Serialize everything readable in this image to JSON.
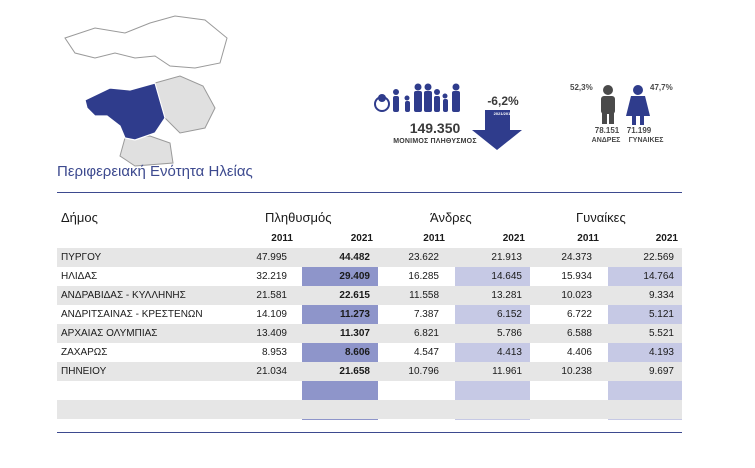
{
  "title": "Περιφερειακή Ενότητα Ηλείας",
  "summary": {
    "total_population": "149.350",
    "total_label": "ΜΟΝΙΜΟΣ ΠΛΗΘΥΣΜΟΣ",
    "change": "-6,2%",
    "change_years": "2021/2011",
    "male_pct": "52,3%",
    "female_pct": "47,7%",
    "male_count": "78.151",
    "female_count": "71.199",
    "male_label": "ΑΝΔΡΕΣ",
    "female_label": "ΓΥΝΑΙΚΕΣ"
  },
  "colors": {
    "accent": "#3d4a8f",
    "map_highlight": "#2f3c8c",
    "pop_2021": "#8e95ca",
    "sex_2021": "#c6c9e5",
    "row_alt": "#e6e6e6"
  },
  "table": {
    "col_municipality": "Δήμος",
    "col_population": "Πληθυσμός",
    "col_men": "Άνδρες",
    "col_women": "Γυναίκες",
    "year_a": "2011",
    "year_b": "2021",
    "rows": [
      {
        "name": "ΠΥΡΓΟΥ",
        "p2011": "47.995",
        "p2021": "44.482",
        "m2011": "23.622",
        "m2021": "21.913",
        "f2011": "24.373",
        "f2021": "22.569"
      },
      {
        "name": "ΗΛΙΔΑΣ",
        "p2011": "32.219",
        "p2021": "29.409",
        "m2011": "16.285",
        "m2021": "14.645",
        "f2011": "15.934",
        "f2021": "14.764"
      },
      {
        "name": "ΑΝΔΡΑΒΙΔΑΣ - ΚΥΛΛΗΝΗΣ",
        "p2011": "21.581",
        "p2021": "22.615",
        "m2011": "11.558",
        "m2021": "13.281",
        "f2011": "10.023",
        "f2021": "9.334"
      },
      {
        "name": "ΑΝΔΡΙΤΣΑΙΝΑΣ - ΚΡΕΣΤΕΝΩΝ",
        "p2011": "14.109",
        "p2021": "11.273",
        "m2011": "7.387",
        "m2021": "6.152",
        "f2011": "6.722",
        "f2021": "5.121"
      },
      {
        "name": "ΑΡΧΑΙΑΣ ΟΛΥΜΠΙΑΣ",
        "p2011": "13.409",
        "p2021": "11.307",
        "m2011": "6.821",
        "m2021": "5.786",
        "f2011": "6.588",
        "f2021": "5.521"
      },
      {
        "name": "ΖΑΧΑΡΩΣ",
        "p2011": "8.953",
        "p2021": "8.606",
        "m2011": "4.547",
        "m2021": "4.413",
        "f2011": "4.406",
        "f2021": "4.193"
      },
      {
        "name": "ΠΗΝΕΙΟΥ",
        "p2011": "21.034",
        "p2021": "21.658",
        "m2011": "10.796",
        "m2021": "11.961",
        "f2011": "10.238",
        "f2021": "9.697"
      },
      {
        "name": "",
        "p2011": "",
        "p2021": "",
        "m2011": "",
        "m2021": "",
        "f2011": "",
        "f2021": ""
      },
      {
        "name": "",
        "p2011": "",
        "p2021": "",
        "m2011": "",
        "m2021": "",
        "f2011": "",
        "f2021": ""
      }
    ]
  }
}
